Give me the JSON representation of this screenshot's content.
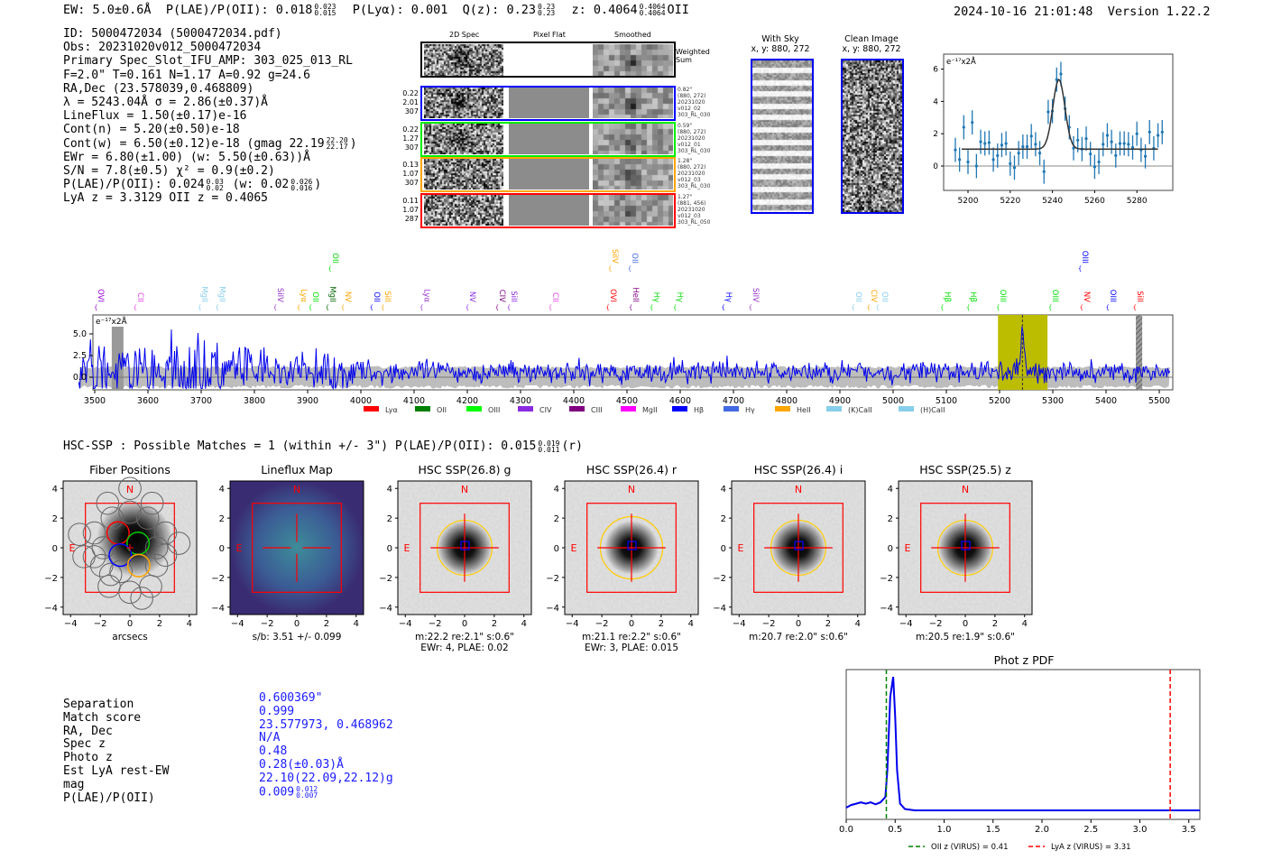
{
  "header": {
    "ew": "EW: 5.0±0.6Å",
    "plae_label": "P(LAE)/P(OII): 0.018",
    "plae_hi": "0.023",
    "plae_lo": "0.015",
    "plya": "P(Lyα): 0.001",
    "qz_label": "Q(z): 0.23",
    "qz_hi": "0.23",
    "qz_lo": "0.23",
    "z_label": "z: 0.4064",
    "z_hi": "0.4064",
    "z_lo": "0.4064",
    "z_line": "OII",
    "datetime": "2024-10-16 21:01:48",
    "version": "Version 1.22.2"
  },
  "info": {
    "lines": [
      "ID: 5000472034 (5000472034.pdf)",
      "Obs: 20231020v012_5000472034",
      "Primary Spec_Slot_IFU_AMP: 303_025_013_RL",
      "F=2.0\"  T=0.161  N=1.17  A=0.92  g=24.6",
      "RA,Dec (23.578039,0.468809)",
      "λ = 5243.04Å   σ = 2.86(±0.37)Å",
      "LineFlux = 1.50(±0.17)e-16",
      "Cont(n) = 5.20(±0.50)e-18"
    ],
    "contw": "Cont(w) = 6.50(±0.12)e-18 (gmag 22.19",
    "contw_hi": "22.20",
    "contw_lo": "22.17",
    "contw_end": ")",
    "ewr": "EWr = 6.80(±1.00) (w: 5.50(±0.63))Å",
    "sn": "S/N = 7.8(±0.5)  χ² = 0.9(±0.2)",
    "plae": "P(LAE)/P(OII): 0.024",
    "plae_hi": "0.03",
    "plae_lo": "0.02",
    "plae_w": "(w: 0.02",
    "plae_w_hi": "0.026",
    "plae_w_lo": "0.016",
    "plae_w_end": ")",
    "z": "LyA z = 3.3129  OII z = 0.4065"
  },
  "spec2d": {
    "col_titles": [
      "2D Spec",
      "Pixel Flat",
      "Smoothed"
    ],
    "weighted_label": "Weighted Sum",
    "rows": [
      {
        "color": "#0000ff",
        "left": [
          "0.22",
          "2.01",
          "307"
        ],
        "right": [
          "0.82\"",
          "(880, 272)",
          "20231020",
          "v012_02",
          "303_RL_030"
        ]
      },
      {
        "color": "#00ee00",
        "left": [
          "0.22",
          "1.27",
          "307"
        ],
        "right": [
          "0.59\"",
          "(880, 272)",
          "20231020",
          "v012_01",
          "303_RL_030"
        ]
      },
      {
        "color": "#ffa500",
        "left": [
          "0.13",
          "1.07",
          "307"
        ],
        "right": [
          "1.28\"",
          "(880, 272)",
          "20231020",
          "v012_03",
          "303_RL_030"
        ]
      },
      {
        "color": "#ff0000",
        "left": [
          "0.11",
          "1.07",
          "287"
        ],
        "right": [
          "1.27\"",
          "(881, 456)",
          "20231020",
          "v012_03",
          "303_RL_050"
        ]
      }
    ]
  },
  "sky": {
    "with_sky": "With Sky",
    "with_sky_xy": "x, y: 880, 272",
    "clean": "Clean Image",
    "clean_xy": "x, y: 880, 272"
  },
  "chart_data": [
    {
      "type": "line",
      "name": "line-fit",
      "ylabel": "e⁻¹⁷x2Å",
      "xlim": [
        5190,
        5296
      ],
      "ylim": [
        -1.8,
        6.9
      ],
      "xticks": [
        "5200",
        "5220",
        "5240",
        "5260",
        "5280"
      ],
      "yticks": [
        "0",
        "2",
        "4",
        "6"
      ],
      "x": [
        5194,
        5196,
        5198,
        5200,
        5202,
        5204,
        5206,
        5208,
        5210,
        5212,
        5214,
        5216,
        5218,
        5220,
        5222,
        5224,
        5226,
        5228,
        5230,
        5232,
        5234,
        5236,
        5238,
        5240,
        5242,
        5244,
        5246,
        5248,
        5250,
        5252,
        5254,
        5256,
        5258,
        5260,
        5262,
        5264,
        5266,
        5268,
        5270,
        5272,
        5274,
        5276,
        5278,
        5280,
        5282,
        5284,
        5286,
        5288,
        5290,
        5292
      ],
      "y": [
        1.0,
        0.4,
        2.4,
        0.25,
        2.7,
        0.0,
        1.5,
        1.4,
        1.45,
        0.4,
        0.65,
        1.3,
        1.4,
        0.15,
        -0.1,
        0.8,
        1.2,
        1.2,
        1.85,
        1.35,
        0.8,
        -0.35,
        3.35,
        3.4,
        5.35,
        5.7,
        3.55,
        2.4,
        1.1,
        1.6,
        1.05,
        1.7,
        0.75,
        -0.05,
        0.25,
        1.35,
        1.9,
        1.5,
        0.65,
        1.4,
        1.4,
        1.35,
        1.15,
        2.0,
        1.0,
        0.6,
        2.1,
        1.1,
        1.9,
        2.1
      ],
      "yerr": 0.75,
      "fit": {
        "continuum": 1.05,
        "amplitude": 4.3,
        "center": 5243.04,
        "sigma": 2.86,
        "range": [
          5197,
          5290
        ]
      }
    },
    {
      "type": "line",
      "name": "full-spectrum",
      "ylabel": "e⁻¹⁷x2Å",
      "xlim": [
        3470,
        5520
      ],
      "ylim": [
        -1.5,
        7.5
      ],
      "xticks": [
        "3500",
        "3600",
        "3700",
        "3800",
        "3900",
        "4000",
        "4100",
        "4200",
        "4300",
        "4400",
        "4500",
        "4600",
        "4700",
        "4800",
        "4900",
        "5000",
        "5100",
        "5200",
        "5300",
        "5400",
        "5500"
      ],
      "yticks": [
        "0.0",
        "2.5",
        "5.0"
      ],
      "peak": {
        "wavelength": 5243,
        "value": 5.5
      },
      "highlight": [
        5197,
        5290
      ],
      "masked": [
        [
          3532,
          3554
        ],
        [
          5456,
          5468
        ]
      ],
      "lines": [
        {
          "l": "OVI",
          "w": 3502,
          "c": "#9400d3"
        },
        {
          "l": "CII",
          "w": 3576,
          "c": "#e040e0"
        },
        {
          "l": "MgII",
          "w": 3697,
          "c": "#87ceeb"
        },
        {
          "l": "MgII",
          "w": 3730,
          "c": "#87ceeb"
        },
        {
          "l": "SiIV",
          "w": 3839,
          "c": "#9932cc"
        },
        {
          "l": "Lyα",
          "w": 3883,
          "c": "#ffa500"
        },
        {
          "l": "OII",
          "w": 3905,
          "c": "#00dd00"
        },
        {
          "l": "MgII",
          "w": 3937,
          "c": "#006400"
        },
        {
          "l": "NV",
          "w": 3966,
          "c": "#ffa500"
        },
        {
          "l": "OII",
          "w": 4020,
          "c": "#0000ff"
        },
        {
          "l": "SiII",
          "w": 4041,
          "c": "#ffa500"
        },
        {
          "l": "Lyα",
          "w": 4114,
          "c": "#9932cc"
        },
        {
          "l": "NV",
          "w": 4200,
          "c": "#8a2be2"
        },
        {
          "l": "CIV",
          "w": 4256,
          "c": "#800080"
        },
        {
          "l": "SiII",
          "w": 4278,
          "c": "#8a2be2"
        },
        {
          "l": "CII",
          "w": 4356,
          "c": "#e040e0"
        },
        {
          "l": "OVI",
          "w": 4464,
          "c": "#ff0000"
        },
        {
          "l": "HeII",
          "w": 4507,
          "c": "#800080"
        },
        {
          "l": "Hγ",
          "w": 4546,
          "c": "#00dd00"
        },
        {
          "l": "Hγ",
          "w": 4590,
          "c": "#00dd00"
        },
        {
          "l": "Hγ",
          "w": 4681,
          "c": "#0000ff"
        },
        {
          "l": "SiIV",
          "w": 4732,
          "c": "#9932cc"
        },
        {
          "l": "OII",
          "w": 4925,
          "c": "#87ceeb"
        },
        {
          "l": "CIV",
          "w": 4954,
          "c": "#ffa500"
        },
        {
          "l": "OII",
          "w": 4971,
          "c": "#87ceeb"
        },
        {
          "l": "Hβ",
          "w": 5092,
          "c": "#00dd00"
        },
        {
          "l": "Hβ",
          "w": 5141,
          "c": "#00dd00"
        },
        {
          "l": "OIII",
          "w": 5197,
          "c": "#00dd00"
        },
        {
          "l": "OIII",
          "w": 5295,
          "c": "#00dd00"
        },
        {
          "l": "NV",
          "w": 5354,
          "c": "#ff0000"
        },
        {
          "l": "OIII",
          "w": 5403,
          "c": "#0000ff"
        },
        {
          "l": "SiII",
          "w": 5454,
          "c": "#ff0000"
        },
        {
          "l": "OII",
          "w": 3942,
          "c": "#00dd00",
          "up": true
        },
        {
          "l": "SiIV",
          "w": 4468,
          "c": "#ffa500",
          "up": true
        },
        {
          "l": "OII",
          "w": 4505,
          "c": "#4169e1",
          "up": true
        },
        {
          "l": "OIII",
          "w": 5351,
          "c": "#0000ff",
          "up": true
        }
      ],
      "legend": [
        {
          "l": "Lyα",
          "c": "#ff0000"
        },
        {
          "l": "OII",
          "c": "#008000"
        },
        {
          "l": "OIII",
          "c": "#00ff00"
        },
        {
          "l": "CIV",
          "c": "#8a2be2"
        },
        {
          "l": "CIII",
          "c": "#800080"
        },
        {
          "l": "MgII",
          "c": "#ff00ff"
        },
        {
          "l": "Hβ",
          "c": "#0000ff"
        },
        {
          "l": "Hγ",
          "c": "#4169e1"
        },
        {
          "l": "HeII",
          "c": "#ffa500"
        },
        {
          "l": "(K)CaII",
          "c": "#87ceeb"
        },
        {
          "l": "(H)CaII",
          "c": "#87ceeb"
        }
      ]
    },
    {
      "type": "line",
      "name": "phot-z-pdf",
      "title": "Phot z PDF",
      "xlim": [
        0,
        3.6
      ],
      "xticks": [
        "0.0",
        "0.5",
        "1.0",
        "1.5",
        "2.0",
        "2.5",
        "3.0",
        "3.5"
      ],
      "x": [
        0,
        0.05,
        0.1,
        0.15,
        0.2,
        0.25,
        0.3,
        0.35,
        0.4,
        0.42,
        0.45,
        0.48,
        0.5,
        0.52,
        0.55,
        0.6,
        0.7,
        3.6
      ],
      "y": [
        0.02,
        0.04,
        0.05,
        0.06,
        0.05,
        0.06,
        0.045,
        0.06,
        0.1,
        0.3,
        0.85,
        1.0,
        0.7,
        0.3,
        0.05,
        0.01,
        0,
        0
      ],
      "markers": [
        {
          "z": 0.41,
          "c": "#008000",
          "label": "OII z (VIRUS) = 0.41"
        },
        {
          "z": 3.31,
          "c": "#ff0000",
          "label": "LyA z (VIRUS) = 3.31"
        }
      ]
    }
  ],
  "spectrum_label": "e⁻¹⁷x2Å",
  "hsc_line": "HSC-SSP : Possible Matches = 1 (within +/- 3\")  P(LAE)/P(OII): 0.015",
  "hsc_hi": "0.019",
  "hsc_lo": "0.011",
  "hsc_end": "(r)",
  "cutouts": [
    {
      "title": "Fiber Positions",
      "cap": [
        "arcsecs"
      ],
      "kind": "fiber"
    },
    {
      "title": "Lineflux Map",
      "cap": [
        "s/b: 3.51 +/- 0.099"
      ],
      "kind": "flux"
    },
    {
      "title": "HSC SSP(26.8) g",
      "cap": [
        "m:22.2  re:2.1\"  s:0.6\"",
        "EWr: 4, PLAE: 0.02"
      ],
      "kind": "hsc"
    },
    {
      "title": "HSC SSP(26.4) r",
      "cap": [
        "m:21.1  re:2.2\"  s:0.6\"",
        "EWr: 3, PLAE: 0.015"
      ],
      "kind": "hsc"
    },
    {
      "title": "HSC SSP(26.4) i",
      "cap": [
        "m:20.7  re:2.0\"  s:0.6\""
      ],
      "kind": "hsc"
    },
    {
      "title": "HSC SSP(25.5) z",
      "cap": [
        "m:20.5  re:1.9\"  s:0.6\""
      ],
      "kind": "hsc"
    }
  ],
  "cutout_axis": {
    "ticks": [
      "4",
      "2",
      "0",
      "−2",
      "−4"
    ],
    "xticks": [
      "−4",
      "−2",
      "0",
      "2",
      "4"
    ],
    "n": "N",
    "e": "E"
  },
  "match": {
    "labels": [
      "Separation",
      "Match score",
      "RA, Dec",
      "Spec z",
      "Photo z",
      "Est LyA rest-EW",
      "mag",
      "P(LAE)/P(OII)"
    ],
    "values": [
      "0.600369\"",
      "0.999",
      "23.577973, 0.468962",
      "N/A",
      "0.48",
      "0.28(±0.03)Å",
      "22.10(22.09,22.12)g",
      "0.009"
    ],
    "plae_hi": "0.012",
    "plae_lo": "0.007"
  }
}
